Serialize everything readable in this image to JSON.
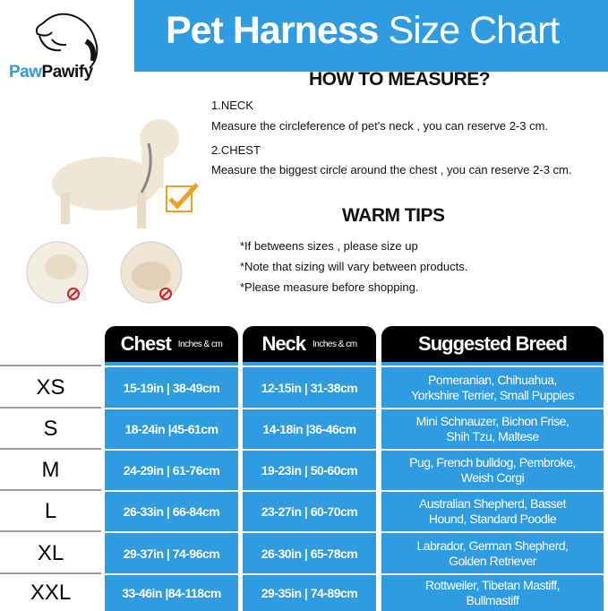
{
  "brand": {
    "logo_part1": "Paw",
    "logo_part2": "Pawify"
  },
  "banner": {
    "title_bold": "Pet Harness",
    "title_light": "Size Chart"
  },
  "measure": {
    "heading": "HOW TO MEASURE?",
    "neck_title": "1.NECK",
    "neck_text": "Measure the circleference of pet's neck , you can reserve 2-3 cm.",
    "chest_title": "2.CHEST",
    "chest_text": "Measure the biggest circle around the chest , you can reserve 2-3 cm."
  },
  "tips": {
    "heading": "WARM TIPS",
    "items": [
      "*If betweens sizes , please size up",
      "*Note that sizing will vary between products.",
      "*Please measure before shopping."
    ]
  },
  "table": {
    "headers": [
      {
        "label": "Chest",
        "sub": "Inches & cm"
      },
      {
        "label": "Neck",
        "sub": "Inches & cm"
      },
      {
        "label": "Suggested Breed",
        "sub": ""
      }
    ],
    "rows": [
      {
        "size": "XS",
        "chest": "15-19in | 38-49cm",
        "neck": "12-15in | 31-38cm",
        "breed1": "Pomeranian,  Chihuahua,",
        "breed2": "Yorkshire Terrier,  Small Puppies"
      },
      {
        "size": "S",
        "chest": "18-24in |45-61cm",
        "neck": "14-18in |36-46cm",
        "breed1": "Mini Schnauzer,  Bichon Frise,",
        "breed2": "Shih Tzu,  Maltese"
      },
      {
        "size": "M",
        "chest": "24-29in | 61-76cm",
        "neck": "19-23in | 50-60cm",
        "breed1": "Pug,  French bulldog,  Pembroke,",
        "breed2": "Weish Corgi"
      },
      {
        "size": "L",
        "chest": "26-33in | 66-84cm",
        "neck": "23-27in | 60-70cm",
        "breed1": "Australian Shepherd,  Basset",
        "breed2": "Hound,  Standard Poodle"
      },
      {
        "size": "XL",
        "chest": "29-37in | 74-96cm",
        "neck": "26-30in | 65-78cm",
        "breed1": "Labrador,  German Shepherd,",
        "breed2": "Golden Retriever"
      },
      {
        "size": "XXL",
        "chest": "33-46in |84-118cm",
        "neck": "29-35in | 74-89cm",
        "breed1": "Rottweiler,  Tibetan Mastiff,",
        "breed2": "Bullmastiff"
      }
    ]
  },
  "colors": {
    "accent": "#2f9be0",
    "header": "#000000",
    "check": "#f0a020",
    "prohibit": "#d0202a"
  }
}
